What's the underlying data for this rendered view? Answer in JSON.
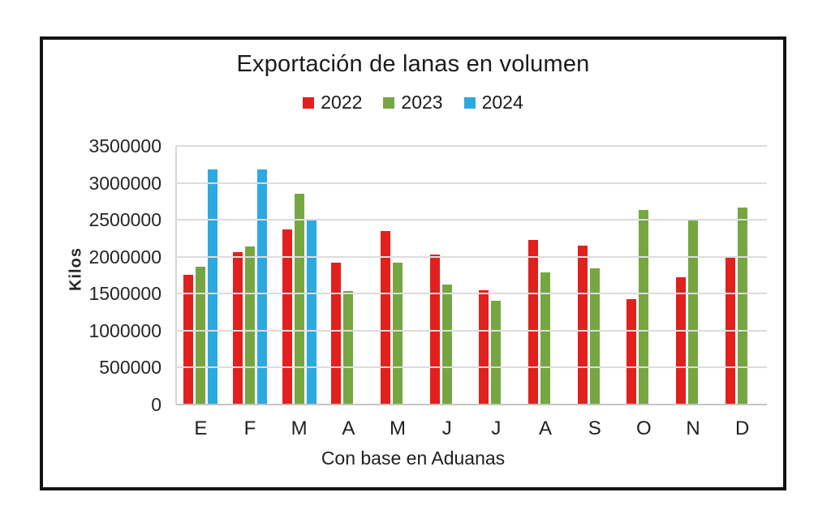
{
  "chart_data": {
    "type": "bar",
    "title": "Exportación de lanas en volumen",
    "xlabel": "Con base en Aduanas",
    "ylabel": "Kilos",
    "categories": [
      "E",
      "F",
      "M",
      "A",
      "M",
      "J",
      "J",
      "A",
      "S",
      "O",
      "N",
      "D"
    ],
    "series": [
      {
        "name": "2022",
        "color": "#e2201d",
        "values": [
          1760000,
          2060000,
          2370000,
          1920000,
          2350000,
          2030000,
          1550000,
          2230000,
          2150000,
          1430000,
          1720000,
          2010000
        ]
      },
      {
        "name": "2023",
        "color": "#76a642",
        "values": [
          1870000,
          2140000,
          2850000,
          1540000,
          1920000,
          1620000,
          1400000,
          1790000,
          1840000,
          2630000,
          2500000,
          2670000
        ]
      },
      {
        "name": "2024",
        "color": "#2ca9e1",
        "values": [
          3180000,
          3180000,
          2500000,
          null,
          null,
          null,
          null,
          null,
          null,
          null,
          null,
          null
        ]
      }
    ],
    "ylim": [
      0,
      3500000
    ],
    "ytick_step": 500000,
    "grid": true,
    "legend_position": "top"
  }
}
